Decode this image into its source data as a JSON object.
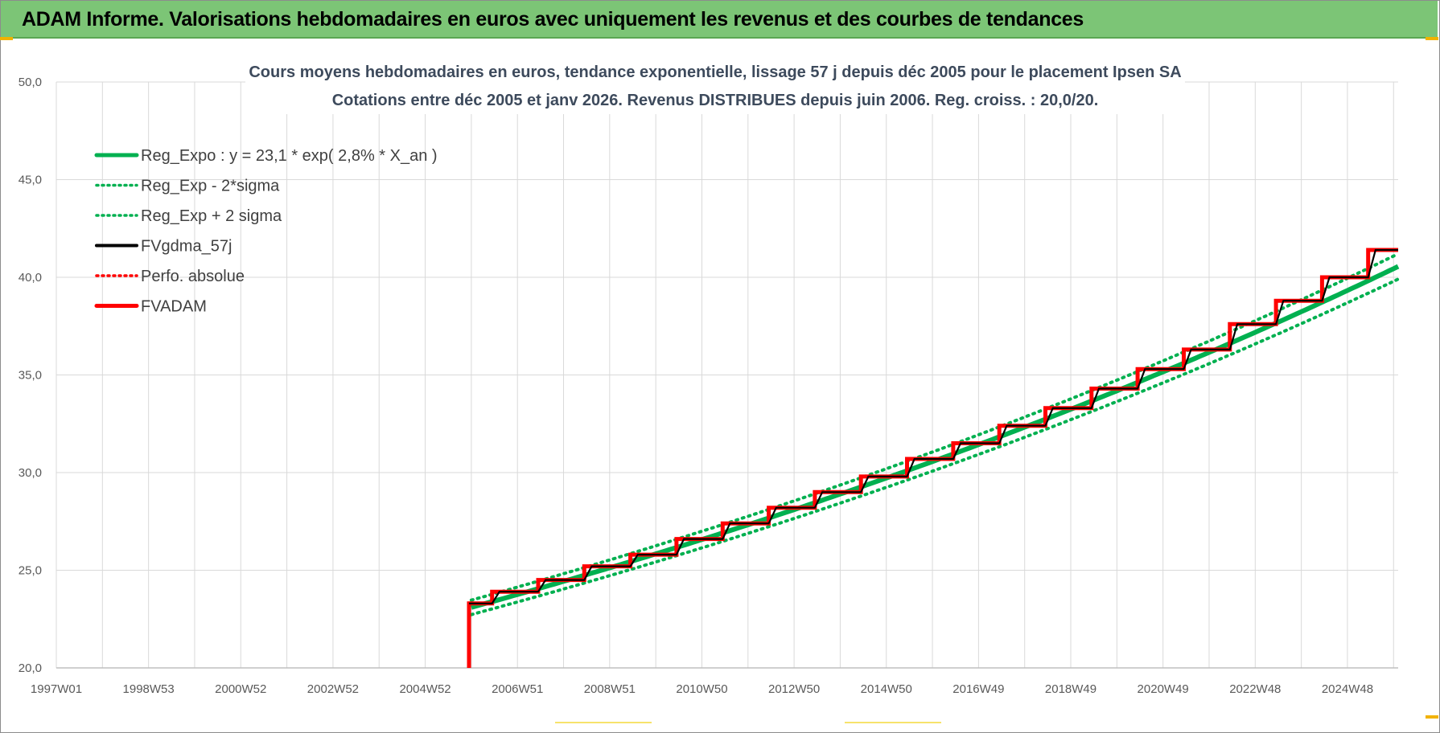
{
  "banner": {
    "title": "ADAM Informe. Valorisations hebdomadaires en euros avec uniquement les revenus et des courbes de tendances"
  },
  "chart_data": {
    "type": "line",
    "title": "Cours moyens hebdomadaires en euros, tendance exponentielle, lissage 57 j depuis déc 2005 pour le placement Ipsen SA",
    "subtitle": "Cotations entre déc 2005 et janv 2026. Revenus DISTRIBUES depuis juin 2006. Reg. croiss. : 20,0/20.",
    "xlabel": "",
    "ylabel": "",
    "x_ticks": [
      "1997W01",
      "1998W53",
      "2000W52",
      "2002W52",
      "2004W52",
      "2006W51",
      "2008W51",
      "2010W50",
      "2012W50",
      "2014W50",
      "2016W49",
      "2018W49",
      "2020W49",
      "2022W48",
      "2024W48"
    ],
    "x_tick_years": [
      1997.0,
      1999.0,
      2001.0,
      2003.0,
      2005.0,
      2007.0,
      2009.0,
      2011.0,
      2013.0,
      2015.0,
      2017.0,
      2019.0,
      2021.0,
      2023.0,
      2025.0
    ],
    "xlim": [
      1997.0,
      2026.1
    ],
    "ylim": [
      20,
      50
    ],
    "y_ticks": [
      "20,0",
      "25,0",
      "30,0",
      "35,0",
      "40,0",
      "45,0",
      "50,0"
    ],
    "y_tick_values": [
      20,
      25,
      30,
      35,
      40,
      45,
      50
    ],
    "grid": true,
    "legend_position": "top-left",
    "regression": {
      "start_year": 2006.0,
      "end_year": 2026.1,
      "y0": 23.1,
      "growth": 0.028,
      "band_factor": 0.016
    },
    "series": [
      {
        "name": "Reg_Expo : y = 23,1 * exp( 2,8% *  X_an )",
        "color": "#00b050",
        "style": "solid-thick"
      },
      {
        "name": "Reg_Exp - 2*sigma",
        "color": "#00b050",
        "style": "dotted"
      },
      {
        "name": "Reg_Exp + 2 sigma",
        "color": "#00b050",
        "style": "dotted"
      },
      {
        "name": "FVgdma_57j",
        "color": "#000000",
        "style": "solid"
      },
      {
        "name": "Perfo. absolue",
        "color": "#ff0000",
        "style": "dotted"
      },
      {
        "name": "FVADAM",
        "color": "#ff0000",
        "style": "solid-thick",
        "start": [
          2005.95,
          20.0
        ],
        "steps": [
          [
            2005.95,
            23.3
          ],
          [
            2006.45,
            23.9
          ],
          [
            2007.45,
            24.5
          ],
          [
            2008.45,
            25.2
          ],
          [
            2009.45,
            25.8
          ],
          [
            2010.45,
            26.6
          ],
          [
            2011.45,
            27.4
          ],
          [
            2012.45,
            28.2
          ],
          [
            2013.45,
            29.0
          ],
          [
            2014.45,
            29.8
          ],
          [
            2015.45,
            30.7
          ],
          [
            2016.45,
            31.5
          ],
          [
            2017.45,
            32.4
          ],
          [
            2018.45,
            33.3
          ],
          [
            2019.45,
            34.3
          ],
          [
            2020.45,
            35.3
          ],
          [
            2021.45,
            36.3
          ],
          [
            2022.45,
            37.6
          ],
          [
            2023.45,
            38.8
          ],
          [
            2024.45,
            40.0
          ],
          [
            2025.45,
            41.4
          ]
        ],
        "end": 2026.1
      }
    ]
  }
}
